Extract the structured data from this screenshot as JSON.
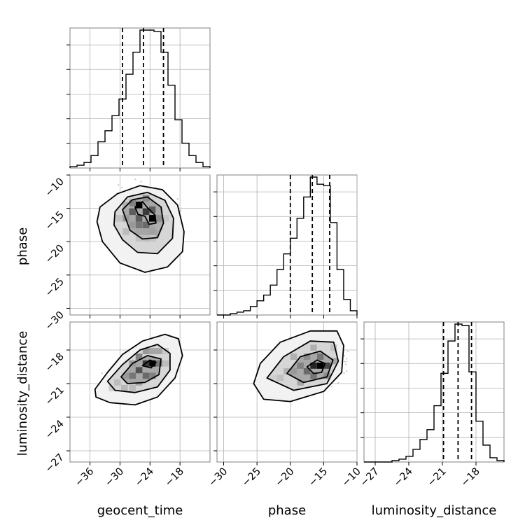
{
  "chart_data": {
    "type": "corner",
    "parameters": [
      "geocent_time",
      "phase",
      "luminosity_distance"
    ],
    "axis_ranges": {
      "geocent_time": [
        -40,
        -12
      ],
      "phase": [
        -31,
        -10
      ],
      "luminosity_distance": [
        -28,
        -15.5
      ]
    },
    "ticks": {
      "geocent_time": [
        -36,
        -30,
        -24,
        -18
      ],
      "phase_x": [
        -30,
        -25,
        -20,
        -15,
        -10
      ],
      "phase_y": [
        -10,
        -15,
        -20,
        -25,
        -30
      ],
      "luminosity_distance": [
        -27,
        -24,
        -21,
        -18
      ]
    },
    "tick_labels": {
      "geocent_time": [
        "−36",
        "−30",
        "−24",
        "−18"
      ],
      "phase_x": [
        "−30",
        "−25",
        "−20",
        "−15",
        "−10"
      ],
      "phase_y": [
        "−10",
        "−15",
        "−20",
        "−25",
        "−30"
      ],
      "luminosity_distance_x": [
        "−27",
        "−24",
        "−21",
        "−18"
      ],
      "luminosity_distance_y": [
        "−18",
        "−21",
        "−24",
        "−27"
      ]
    },
    "quantiles": {
      "geocent_time": [
        -29.5,
        -25.3,
        -21.3
      ],
      "phase": [
        -20.0,
        -16.7,
        -14.1
      ],
      "luminosity_distance": [
        -20.9,
        -19.6,
        -18.4
      ]
    },
    "histograms": {
      "geocent_time": {
        "edges": [
          -40,
          -38.6,
          -37.2,
          -35.8,
          -34.4,
          -33,
          -31.6,
          -30.2,
          -28.8,
          -27.4,
          -26,
          -24.6,
          -23.2,
          -21.8,
          -20.4,
          -19,
          -17.6,
          -16.2,
          -14.8,
          -13.4,
          -12
        ],
        "counts": [
          1,
          2,
          4,
          9,
          19,
          27,
          38,
          50,
          68,
          84,
          100,
          100,
          99,
          84,
          60,
          35,
          18,
          9,
          4,
          1
        ]
      },
      "phase": {
        "edges": [
          -31,
          -30,
          -29,
          -28,
          -27,
          -26,
          -25,
          -24,
          -23,
          -22,
          -21,
          -20,
          -19,
          -18,
          -17,
          -16,
          -15,
          -14,
          -13,
          -12,
          -11,
          -10
        ],
        "counts": [
          0,
          0,
          1,
          2,
          3,
          6,
          10,
          14,
          21,
          32,
          43,
          54,
          68,
          83,
          97,
          92,
          91,
          65,
          32,
          11,
          3
        ]
      },
      "luminosity_distance": {
        "edges": [
          -28,
          -27.375,
          -26.75,
          -26.125,
          -25.5,
          -24.875,
          -24.25,
          -23.625,
          -23,
          -22.375,
          -21.75,
          -21.125,
          -20.5,
          -19.875,
          -19.25,
          -18.625,
          -18,
          -17.375,
          -16.75,
          -16.125,
          -15.5
        ],
        "counts": [
          0,
          0,
          0,
          0,
          1,
          2,
          4,
          9,
          16,
          23,
          40,
          63,
          86,
          98,
          97,
          64,
          29,
          12,
          3,
          1
        ]
      }
    },
    "contours_2d": {
      "geocent_time_vs_phase": {
        "levels": [
          [
            [
              -34,
              -14.8
            ],
            [
              -30.5,
              -12.8
            ],
            [
              -26,
              -11.6
            ],
            [
              -21.5,
              -12.2
            ],
            [
              -18.5,
              -14.5
            ],
            [
              -17.2,
              -18.5
            ],
            [
              -17.5,
              -21.5
            ],
            [
              -20.5,
              -23.8
            ],
            [
              -25,
              -24.6
            ],
            [
              -30,
              -23.2
            ],
            [
              -33.5,
              -20
            ],
            [
              -34.6,
              -17
            ]
          ],
          [
            [
              -31,
              -15.5
            ],
            [
              -28.5,
              -13.3
            ],
            [
              -24.5,
              -12.6
            ],
            [
              -21,
              -13.8
            ],
            [
              -19.3,
              -16.5
            ],
            [
              -19.5,
              -19.5
            ],
            [
              -22.5,
              -21.8
            ],
            [
              -26.5,
              -21.6
            ],
            [
              -29.5,
              -19.7
            ],
            [
              -31.2,
              -17.5
            ]
          ],
          [
            [
              -29.5,
              -15.2
            ],
            [
              -27.5,
              -13.7
            ],
            [
              -24.5,
              -13.3
            ],
            [
              -21.8,
              -14.8
            ],
            [
              -21.3,
              -17.2
            ],
            [
              -22.5,
              -19.4
            ],
            [
              -25.5,
              -19.6
            ],
            [
              -28,
              -18.3
            ]
          ],
          [
            [
              -27,
              -14.8
            ],
            [
              -25.5,
              -14
            ],
            [
              -24.5,
              -14.9
            ],
            [
              -23,
              -16
            ],
            [
              -22.8,
              -17.2
            ],
            [
              -24.2,
              -17.4
            ],
            [
              -25,
              -16.2
            ],
            [
              -26.4,
              -15.9
            ]
          ]
        ],
        "cells": [
          [
            -26.2,
            -14.5,
            1.0
          ],
          [
            -23.5,
            -16.5,
            1.0
          ],
          [
            -24.8,
            -15.5,
            0.75
          ],
          [
            -27.5,
            -15.5,
            0.6
          ],
          [
            -26.2,
            -16.5,
            0.6
          ],
          [
            -23.5,
            -15.2,
            0.6
          ],
          [
            -24.8,
            -17.5,
            0.55
          ],
          [
            -26.2,
            -17.5,
            0.5
          ],
          [
            -27.5,
            -14.2,
            0.45
          ],
          [
            -22.2,
            -16.5,
            0.4
          ],
          [
            -24.8,
            -13.5,
            0.4
          ],
          [
            -28.8,
            -16.5,
            0.35
          ],
          [
            -27.5,
            -17.5,
            0.35
          ],
          [
            -23.5,
            -18.5,
            0.32
          ],
          [
            -26.2,
            -18.5,
            0.3
          ],
          [
            -22.2,
            -15.2,
            0.28
          ],
          [
            -28.8,
            -14.5,
            0.25
          ],
          [
            -24.8,
            -18.5,
            0.3
          ],
          [
            -22.2,
            -17.8,
            0.25
          ],
          [
            -30.1,
            -16.5,
            0.18
          ],
          [
            -28.8,
            -18.5,
            0.2
          ],
          [
            -26.2,
            -19.5,
            0.18
          ],
          [
            -23.5,
            -19.5,
            0.16
          ],
          [
            -24.8,
            -19.5,
            0.2
          ],
          [
            -20.9,
            -16.5,
            0.15
          ]
        ]
      },
      "geocent_time_vs_luminosity_distance": {
        "levels": [
          [
            [
              -35,
              -21.5
            ],
            [
              -32.5,
              -20
            ],
            [
              -29.5,
              -18.4
            ],
            [
              -25.5,
              -17.2
            ],
            [
              -21,
              -16.6
            ],
            [
              -18.3,
              -17
            ],
            [
              -17.5,
              -18.5
            ],
            [
              -19,
              -20.5
            ],
            [
              -22.5,
              -22.2
            ],
            [
              -27,
              -22.9
            ],
            [
              -32,
              -22.7
            ],
            [
              -34.8,
              -22.2
            ]
          ],
          [
            [
              -32.5,
              -20.8
            ],
            [
              -29.5,
              -19.3
            ],
            [
              -26,
              -18
            ],
            [
              -22.5,
              -17.5
            ],
            [
              -20,
              -18.3
            ],
            [
              -20,
              -19.8
            ],
            [
              -22.5,
              -21.3
            ],
            [
              -27,
              -21.8
            ],
            [
              -31,
              -21.6
            ]
          ],
          [
            [
              -29.8,
              -20.4
            ],
            [
              -27.5,
              -19.2
            ],
            [
              -24.5,
              -18.5
            ],
            [
              -21.8,
              -18.8
            ],
            [
              -22.2,
              -20.2
            ],
            [
              -25,
              -20.9
            ],
            [
              -28.5,
              -21
            ]
          ],
          [
            [
              -25.5,
              -19.4
            ],
            [
              -24,
              -18.9
            ],
            [
              -22.8,
              -19.1
            ],
            [
              -23.8,
              -19.6
            ]
          ]
        ],
        "cells": [
          [
            -23.5,
            -19.2,
            1.0
          ],
          [
            -24.8,
            -19.2,
            0.75
          ],
          [
            -26.2,
            -19.8,
            0.65
          ],
          [
            -24.8,
            -20.3,
            0.55
          ],
          [
            -22.2,
            -19.2,
            0.5
          ],
          [
            -27.5,
            -20.3,
            0.5
          ],
          [
            -26.2,
            -18.6,
            0.45
          ],
          [
            -23.5,
            -20.3,
            0.45
          ],
          [
            -28.8,
            -20.3,
            0.35
          ],
          [
            -22.2,
            -18.1,
            0.3
          ],
          [
            -27.5,
            -19.2,
            0.35
          ],
          [
            -26.2,
            -20.9,
            0.3
          ],
          [
            -24.8,
            -18.1,
            0.35
          ],
          [
            -29.1,
            -21.4,
            0.22
          ],
          [
            -30.5,
            -20.9,
            0.2
          ],
          [
            -20.9,
            -19.2,
            0.2
          ],
          [
            -23.5,
            -18.1,
            0.3
          ],
          [
            -31.6,
            -21.4,
            0.12
          ],
          [
            -20.9,
            -18.1,
            0.15
          ],
          [
            -27.5,
            -21.4,
            0.2
          ]
        ]
      },
      "phase_vs_luminosity_distance": {
        "levels": [
          [
            [
              -25.5,
              -21
            ],
            [
              -24.5,
              -19.2
            ],
            [
              -21.5,
              -17.3
            ],
            [
              -17,
              -16.3
            ],
            [
              -13,
              -16.3
            ],
            [
              -12,
              -17.6
            ],
            [
              -12.3,
              -20
            ],
            [
              -15,
              -21.7
            ],
            [
              -20,
              -22.6
            ],
            [
              -24,
              -22.4
            ]
          ],
          [
            [
              -23.5,
              -20.5
            ],
            [
              -21,
              -18.6
            ],
            [
              -17,
              -17.2
            ],
            [
              -13.5,
              -17.3
            ],
            [
              -12.8,
              -19
            ],
            [
              -14.5,
              -21
            ],
            [
              -19.5,
              -21.6
            ]
          ],
          [
            [
              -20.5,
              -20.1
            ],
            [
              -18.5,
              -18.6
            ],
            [
              -15.5,
              -18.1
            ],
            [
              -13.6,
              -18.9
            ],
            [
              -14.5,
              -20.4
            ],
            [
              -18,
              -20.9
            ]
          ],
          [
            [
              -17.5,
              -19.5
            ],
            [
              -16,
              -18.9
            ],
            [
              -14.8,
              -19.2
            ],
            [
              -15.3,
              -20
            ],
            [
              -16.5,
              -20.1
            ]
          ]
        ],
        "cells": [
          [
            -15.5,
            -19.4,
            1.0
          ],
          [
            -16.5,
            -19.4,
            0.85
          ],
          [
            -14.5,
            -19.4,
            0.7
          ],
          [
            -17.5,
            -19.9,
            0.55
          ],
          [
            -15.5,
            -18.6,
            0.5
          ],
          [
            -16.5,
            -20.3,
            0.5
          ],
          [
            -18.5,
            -19.4,
            0.45
          ],
          [
            -14.5,
            -20.3,
            0.4
          ],
          [
            -17.5,
            -18.6,
            0.4
          ],
          [
            -19.5,
            -19.9,
            0.35
          ],
          [
            -13.5,
            -19,
            0.3
          ],
          [
            -20.5,
            -19.9,
            0.25
          ],
          [
            -18.5,
            -20.9,
            0.3
          ],
          [
            -16.5,
            -17.8,
            0.25
          ],
          [
            -21.5,
            -20.5,
            0.18
          ],
          [
            -13.5,
            -17.8,
            0.18
          ],
          [
            -19.5,
            -18.6,
            0.25
          ],
          [
            -22.5,
            -20.5,
            0.12
          ]
        ]
      }
    }
  }
}
